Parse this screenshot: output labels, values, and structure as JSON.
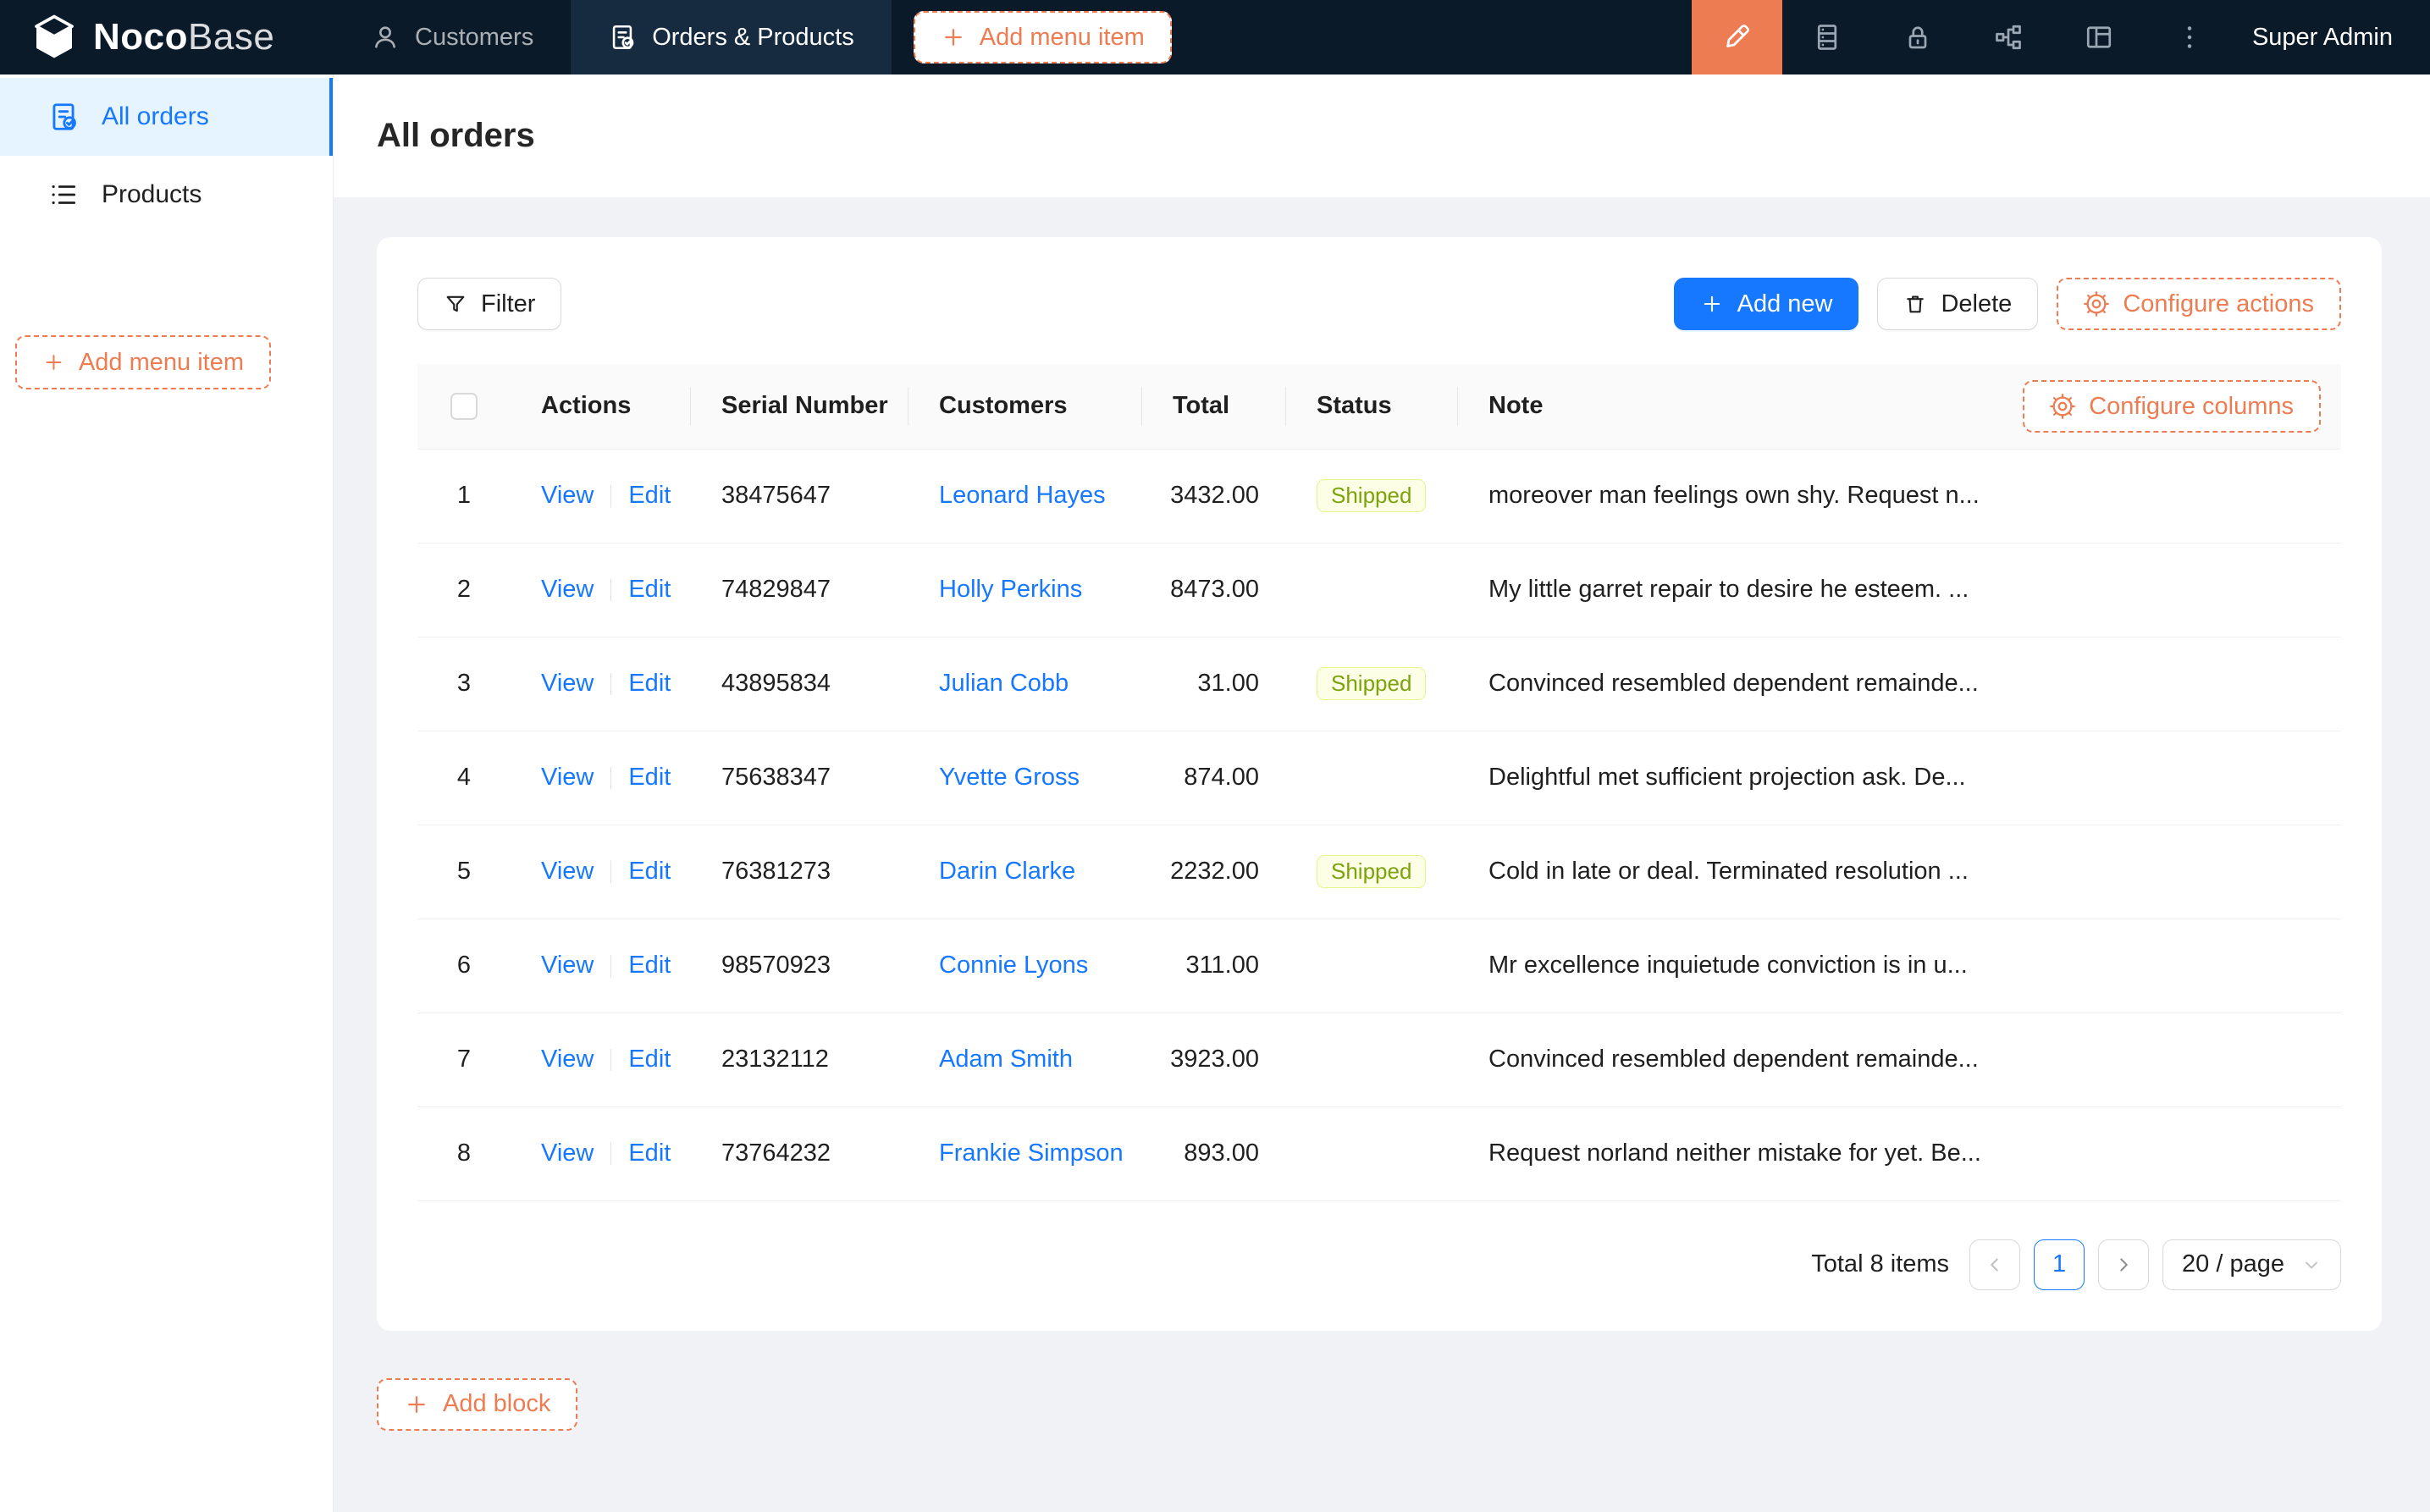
{
  "topbar": {
    "brand_bold": "Noco",
    "brand_light": "Base",
    "nav": [
      {
        "label": "Customers",
        "active": false
      },
      {
        "label": "Orders & Products",
        "active": true
      }
    ],
    "add_menu_item_label": "Add menu item",
    "icons": [
      "highlighter-icon",
      "database-icon",
      "lock-icon",
      "workflow-icon",
      "layout-icon",
      "more-icon"
    ],
    "user_label": "Super Admin"
  },
  "sidebar": {
    "items": [
      {
        "label": "All orders",
        "icon": "file-check-icon",
        "active": true
      },
      {
        "label": "Products",
        "icon": "list-icon",
        "active": false
      }
    ],
    "add_menu_item_label": "Add menu item"
  },
  "page": {
    "title": "All orders"
  },
  "toolbar": {
    "filter_label": "Filter",
    "add_new_label": "Add new",
    "delete_label": "Delete",
    "configure_actions_label": "Configure actions"
  },
  "table": {
    "configure_columns_label": "Configure columns",
    "columns": [
      "Actions",
      "Serial Number",
      "Customers",
      "Total",
      "Status",
      "Note"
    ],
    "action_labels": {
      "view": "View",
      "edit": "Edit"
    },
    "rows": [
      {
        "index": 1,
        "serial": "38475647",
        "customer": "Leonard Hayes",
        "total": "3432.00",
        "status": "Shipped",
        "note": "moreover man feelings own shy. Request n..."
      },
      {
        "index": 2,
        "serial": "74829847",
        "customer": "Holly Perkins",
        "total": "8473.00",
        "status": "",
        "note": "My little garret repair to desire he esteem. ..."
      },
      {
        "index": 3,
        "serial": "43895834",
        "customer": "Julian Cobb",
        "total": "31.00",
        "status": "Shipped",
        "note": "Convinced resembled dependent remainde..."
      },
      {
        "index": 4,
        "serial": "75638347",
        "customer": "Yvette Gross",
        "total": "874.00",
        "status": "",
        "note": "Delightful met sufficient projection ask. De..."
      },
      {
        "index": 5,
        "serial": "76381273",
        "customer": "Darin Clarke",
        "total": "2232.00",
        "status": "Shipped",
        "note": "Cold in late or deal. Terminated resolution ..."
      },
      {
        "index": 6,
        "serial": "98570923",
        "customer": "Connie Lyons",
        "total": "311.00",
        "status": "",
        "note": "Mr excellence inquietude conviction is in u..."
      },
      {
        "index": 7,
        "serial": "23132112",
        "customer": "Adam Smith",
        "total": "3923.00",
        "status": "",
        "note": "Convinced resembled dependent remainde..."
      },
      {
        "index": 8,
        "serial": "73764232",
        "customer": "Frankie Simpson",
        "total": "893.00",
        "status": "",
        "note": "Request norland neither mistake for yet. Be..."
      }
    ]
  },
  "pagination": {
    "total_label": "Total 8 items",
    "page": "1",
    "page_size_label": "20 / page"
  },
  "footer": {
    "add_block_label": "Add block"
  },
  "colors": {
    "topbar_bg": "#0b1a29",
    "topbar_active_tab_bg": "#172b40",
    "accent_orange": "#ee7c52",
    "primary_blue": "#1677ff",
    "sidebar_active_bg": "#e6f4ff",
    "tag_lime_bg": "#fcffe6",
    "tag_lime_border": "#e6f58b",
    "tag_lime_text": "#7ca20c"
  }
}
